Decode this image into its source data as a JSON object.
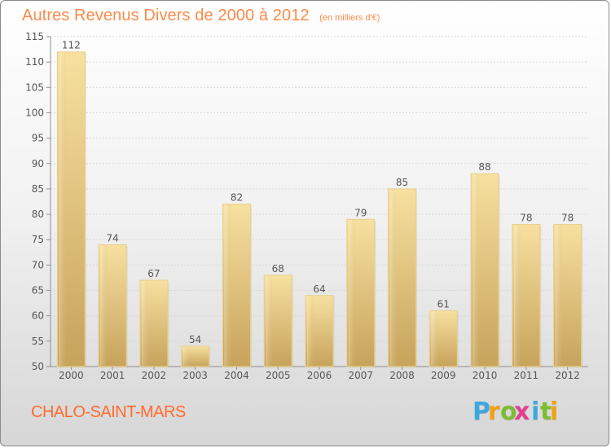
{
  "header": {
    "title": "Autres Revenus Divers de 2000 à 2012",
    "subtitle": "(en milliers d'€)"
  },
  "footer": {
    "commune": "CHALO-SAINT-MARS",
    "brand_letters": [
      {
        "char": "P",
        "color": "#3da7df"
      },
      {
        "char": "r",
        "color": "#f2a112"
      },
      {
        "char": "o",
        "color": "#7dbd33"
      },
      {
        "char": "x",
        "color": "#e63d8f"
      },
      {
        "char": "i",
        "color": "#3da7df"
      },
      {
        "char": "t",
        "color": "#7dbd33"
      },
      {
        "char": "i",
        "color": "#f2a112"
      }
    ]
  },
  "colors": {
    "bar_light": "#f7e0a0",
    "bar_dark": "#c7a35b",
    "bar_shadow": "#b39045",
    "grid": "#d8d8d8",
    "axis": "#8f8f8f",
    "title": "#ff8a4a",
    "commune": "#ff6b2e"
  },
  "chart_data": {
    "type": "bar",
    "title": "Autres Revenus Divers de 2000 à 2012",
    "subtitle": "(en milliers d'€)",
    "categories": [
      "2000",
      "2001",
      "2002",
      "2003",
      "2004",
      "2005",
      "2006",
      "2007",
      "2008",
      "2009",
      "2010",
      "2011",
      "2012"
    ],
    "values": [
      112,
      74,
      67,
      54,
      82,
      68,
      64,
      79,
      85,
      61,
      88,
      78,
      78
    ],
    "yticks": [
      50,
      55,
      60,
      65,
      70,
      75,
      80,
      85,
      90,
      95,
      100,
      105,
      110,
      115
    ],
    "ylim": [
      50,
      115
    ],
    "xlabel": "",
    "ylabel": "",
    "grid": true
  }
}
